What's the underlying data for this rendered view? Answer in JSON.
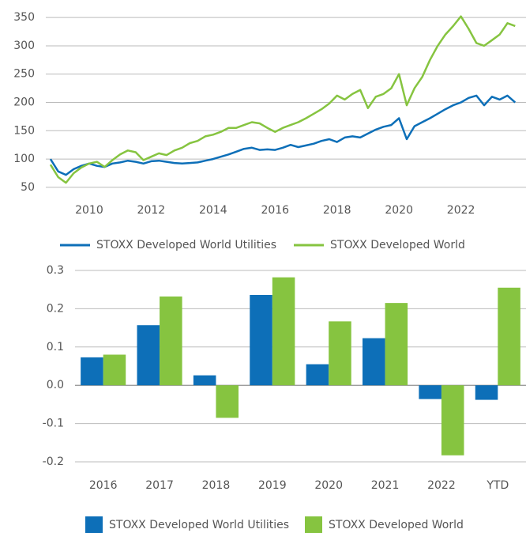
{
  "chart_data": [
    {
      "type": "line",
      "x": [
        2008.75,
        2009,
        2009.25,
        2009.5,
        2009.75,
        2010,
        2010.25,
        2010.5,
        2010.75,
        2011,
        2011.25,
        2011.5,
        2011.75,
        2012,
        2012.25,
        2012.5,
        2012.75,
        2013,
        2013.25,
        2013.5,
        2013.75,
        2014,
        2014.25,
        2014.5,
        2014.75,
        2015,
        2015.25,
        2015.5,
        2015.75,
        2016,
        2016.25,
        2016.5,
        2016.75,
        2017,
        2017.25,
        2017.5,
        2017.75,
        2018,
        2018.25,
        2018.5,
        2018.75,
        2019,
        2019.25,
        2019.5,
        2019.75,
        2020,
        2020.25,
        2020.5,
        2020.75,
        2021,
        2021.25,
        2021.5,
        2021.75,
        2022,
        2022.25,
        2022.5,
        2022.75,
        2023,
        2023.25,
        2023.5,
        2023.75
      ],
      "series": [
        {
          "name": "STOXX Developed World Utilities",
          "color": "#0d6fb8",
          "values": [
            100,
            78,
            72,
            82,
            88,
            92,
            88,
            86,
            92,
            94,
            97,
            95,
            92,
            96,
            97,
            95,
            93,
            92,
            93,
            94,
            97,
            100,
            104,
            108,
            113,
            118,
            120,
            116,
            117,
            116,
            120,
            125,
            121,
            124,
            127,
            132,
            135,
            130,
            138,
            140,
            138,
            145,
            152,
            157,
            160,
            172,
            135,
            158,
            165,
            172,
            180,
            188,
            195,
            200,
            208,
            212,
            195,
            210,
            205,
            212,
            200
          ]
        },
        {
          "name": "STOXX Developed World",
          "color": "#86c440",
          "values": [
            90,
            68,
            58,
            75,
            85,
            92,
            95,
            86,
            98,
            108,
            115,
            112,
            98,
            104,
            110,
            107,
            115,
            120,
            128,
            132,
            140,
            143,
            148,
            155,
            155,
            160,
            165,
            163,
            155,
            148,
            155,
            160,
            165,
            172,
            180,
            188,
            198,
            212,
            205,
            215,
            222,
            190,
            210,
            215,
            225,
            250,
            195,
            225,
            245,
            275,
            300,
            320,
            335,
            352,
            330,
            305,
            300,
            310,
            320,
            340,
            335
          ]
        }
      ],
      "xlim": [
        2008.6,
        2024.1
      ],
      "xticks": [
        2010,
        2012,
        2014,
        2016,
        2018,
        2020,
        2022
      ],
      "ylim": [
        40,
        360
      ],
      "yticks": [
        50,
        100,
        150,
        200,
        250,
        300,
        350
      ],
      "grid": true,
      "legend": "bottom"
    },
    {
      "type": "bar",
      "categories": [
        "2016",
        "2017",
        "2018",
        "2019",
        "2020",
        "2021",
        "2022",
        "YTD"
      ],
      "series": [
        {
          "name": "STOXX Developed World Utilities",
          "color": "#0d6fb8",
          "values": [
            0.073,
            0.157,
            0.026,
            0.236,
            0.055,
            0.123,
            -0.036,
            -0.038
          ]
        },
        {
          "name": "STOXX Developed World",
          "color": "#86c440",
          "values": [
            0.08,
            0.232,
            -0.085,
            0.282,
            0.167,
            0.215,
            -0.183,
            0.255
          ]
        }
      ],
      "ylim": [
        -0.2,
        0.3
      ],
      "yticks": [
        0.3,
        0.2,
        0.1,
        {
          "value": 0,
          "label": "0.0"
        },
        -0.1,
        -0.2
      ],
      "grid": true,
      "legend": "bottom"
    }
  ]
}
